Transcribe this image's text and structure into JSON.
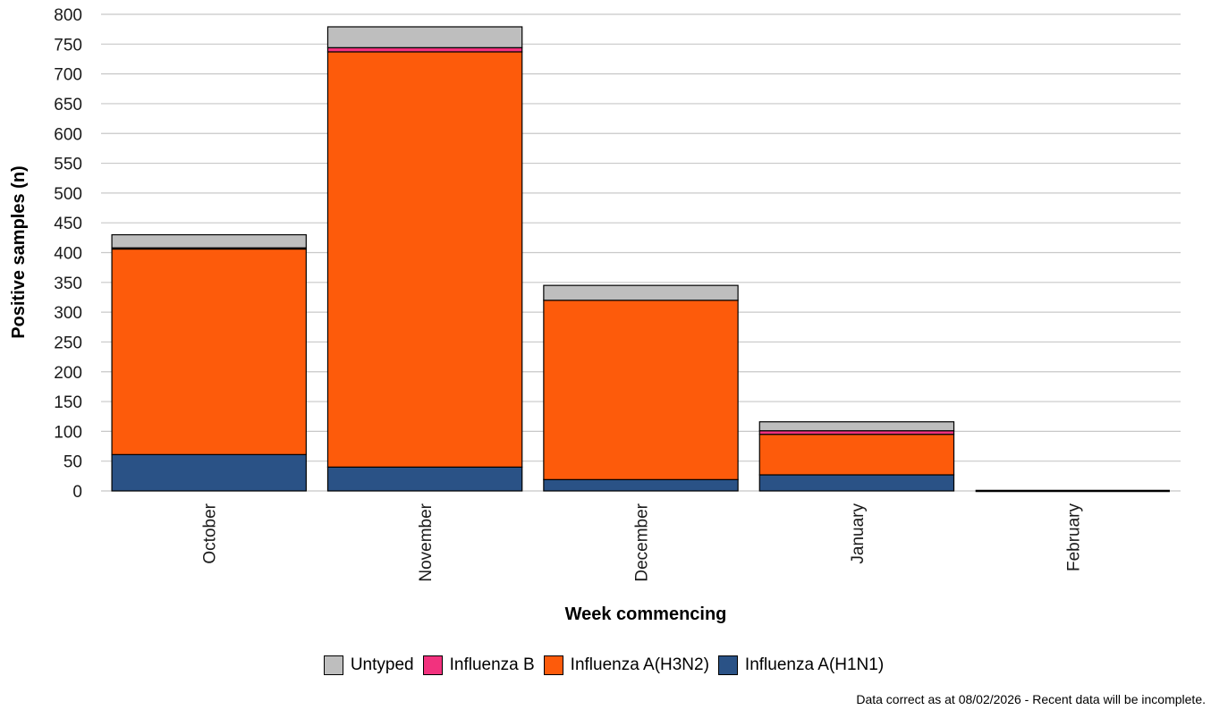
{
  "chart_data": {
    "type": "bar",
    "stacked": true,
    "categories": [
      "October",
      "November",
      "December",
      "January",
      "February"
    ],
    "series": [
      {
        "name": "Influenza A(H1N1)",
        "color": "#2a5286",
        "values": [
          61,
          40,
          19,
          27,
          0
        ]
      },
      {
        "name": "Influenza A(H3N2)",
        "color": "#fd5b0b",
        "values": [
          345,
          697,
          301,
          68,
          0
        ]
      },
      {
        "name": "Influenza B",
        "color": "#f2327e",
        "values": [
          2,
          7,
          0,
          6,
          0
        ]
      },
      {
        "name": "Untyped",
        "color": "#bebebe",
        "values": [
          22,
          35,
          25,
          15,
          0
        ]
      }
    ],
    "xlabel": "Week commencing",
    "ylabel": "Positive samples (n)",
    "ylim": [
      0,
      800
    ],
    "yticks": [
      0,
      50,
      100,
      150,
      200,
      250,
      300,
      350,
      400,
      450,
      500,
      550,
      600,
      650,
      700,
      750,
      800
    ],
    "grid": "horizontal",
    "legend_position": "bottom",
    "legend_order": [
      "Untyped",
      "Influenza B",
      "Influenza A(H3N2)",
      "Influenza A(H1N1)"
    ]
  },
  "footnote": "Data correct as at 08/02/2026 - Recent data will be incomplete."
}
